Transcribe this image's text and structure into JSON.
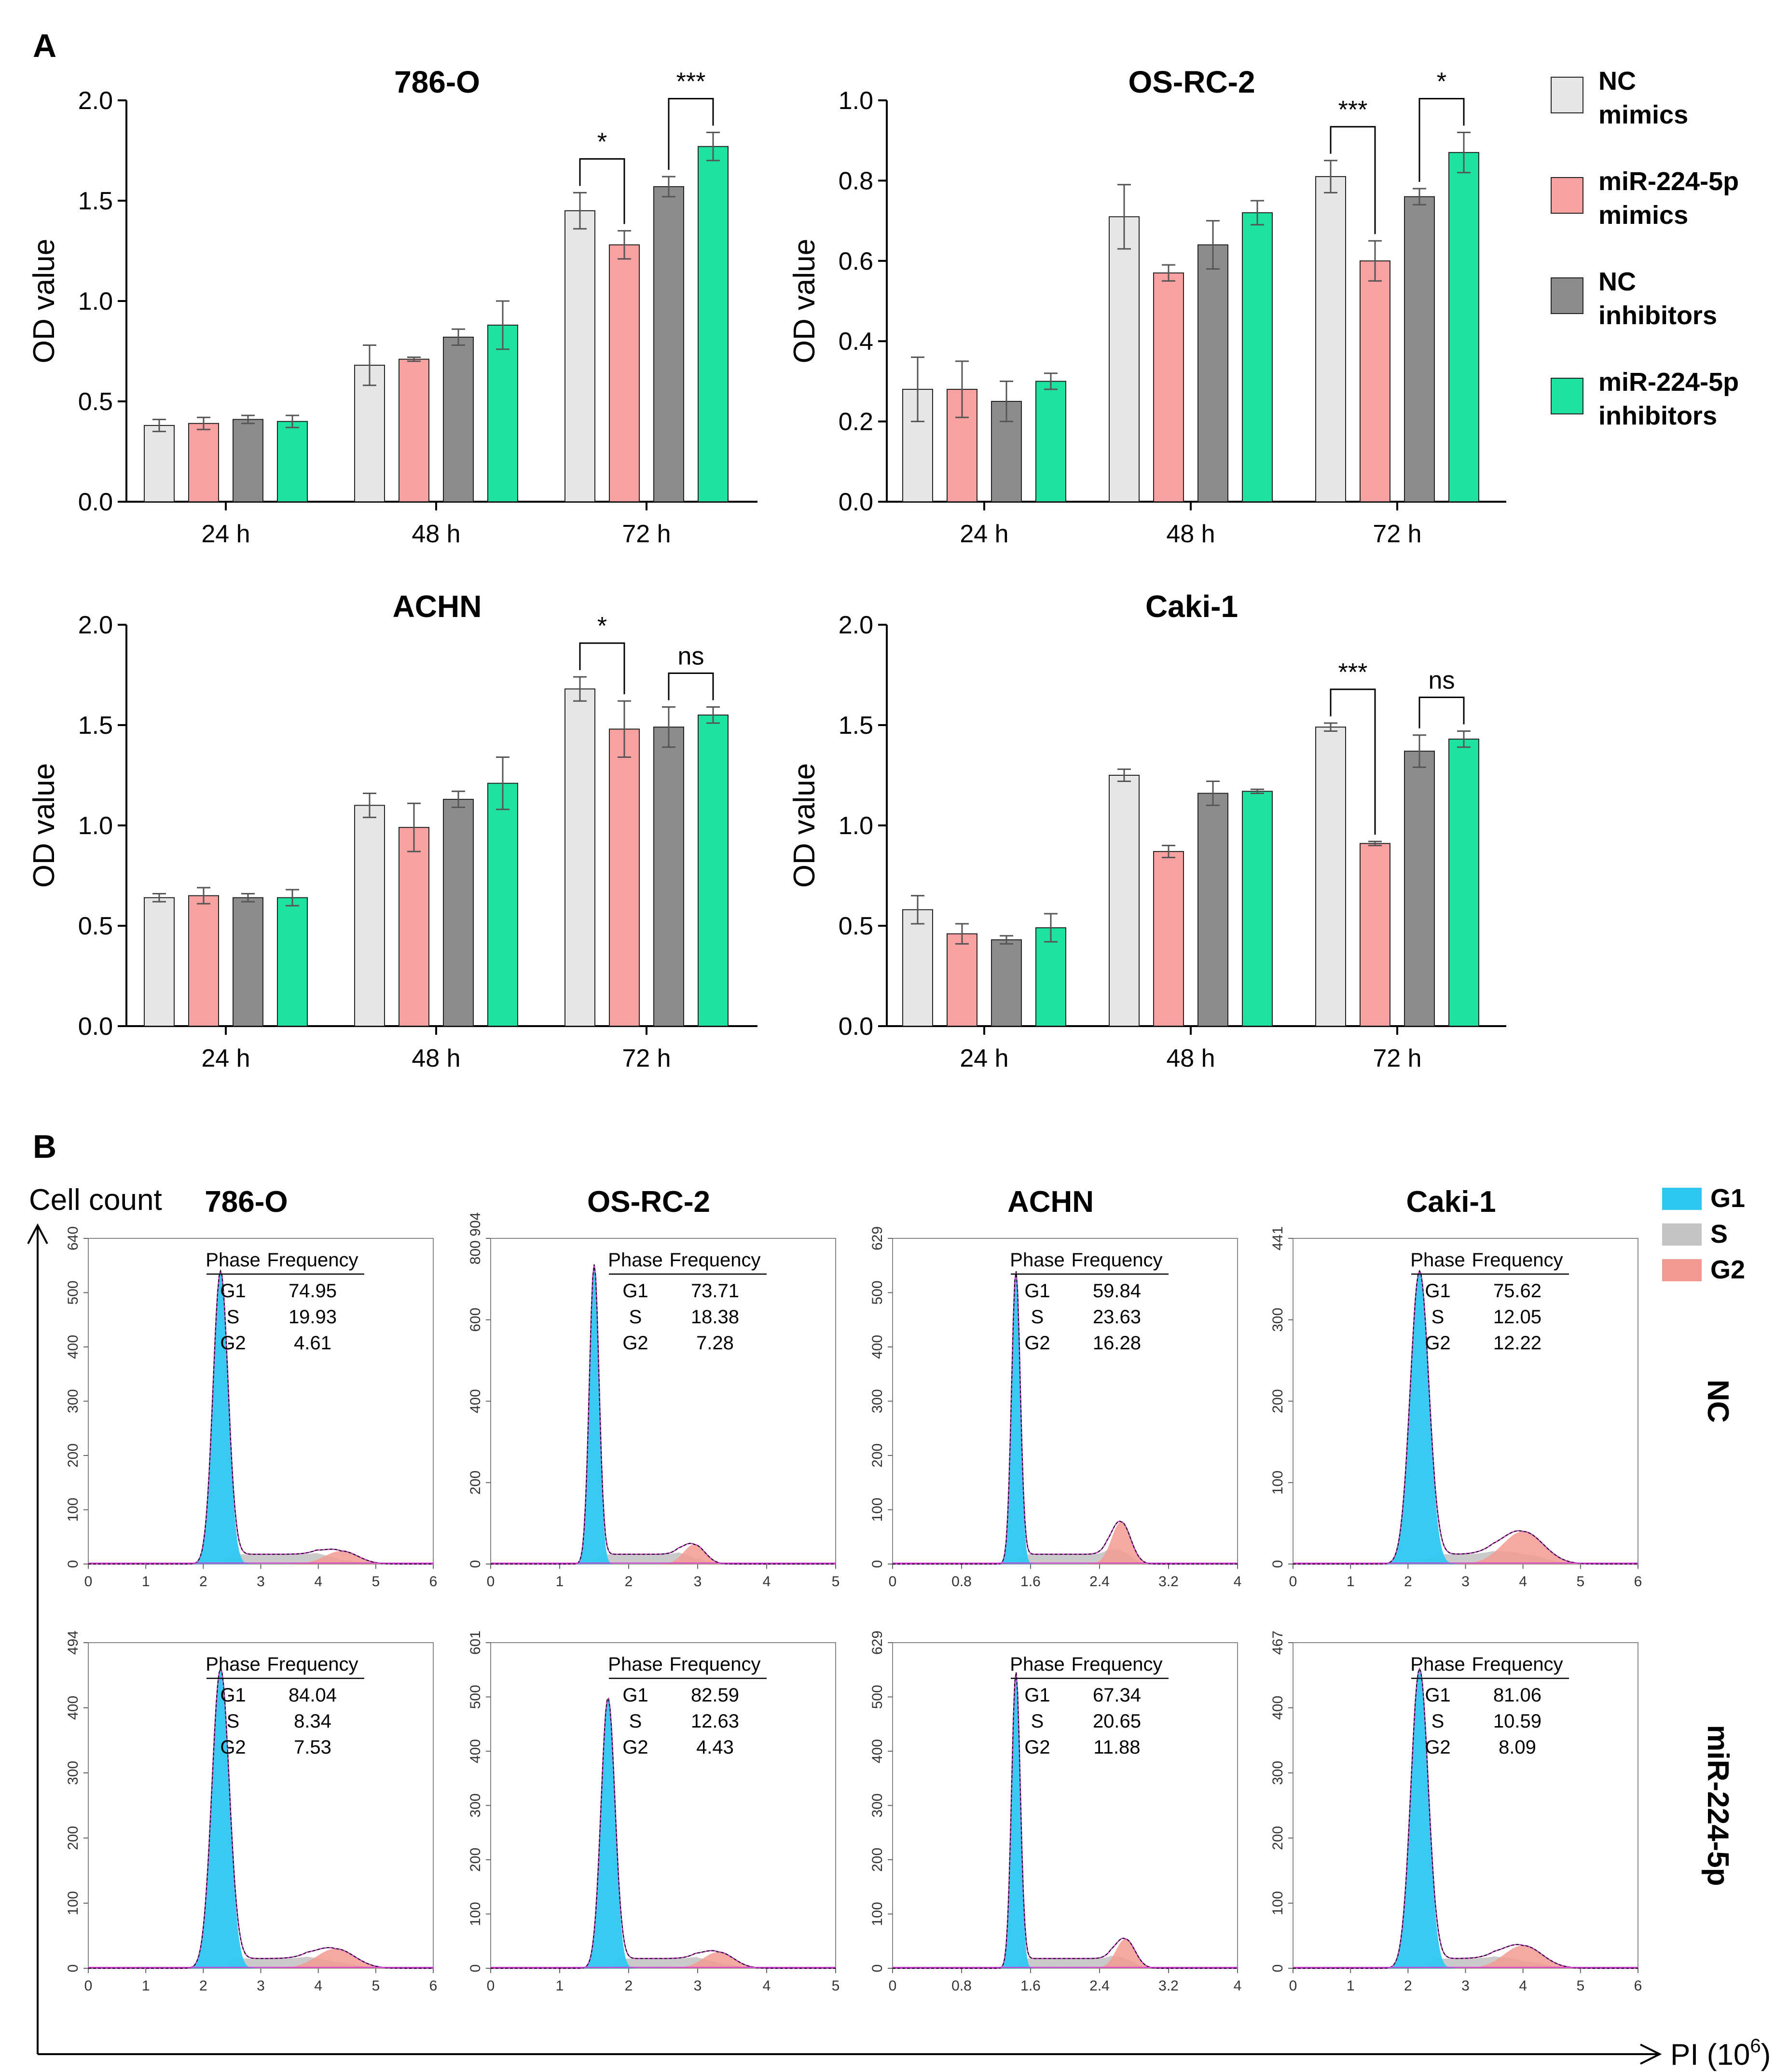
{
  "panel_a_label": "A",
  "panel_b_label": "B",
  "legend_a": [
    {
      "line1": "NC",
      "line2": "mimics",
      "color": "#e6e6e6"
    },
    {
      "line1": "miR-224-5p",
      "line2": "mimics",
      "color": "#f7a1a1"
    },
    {
      "line1": "NC",
      "line2": "inhibitors",
      "color": "#8c8c8c"
    },
    {
      "line1": "miR-224-5p",
      "line2": "inhibitors",
      "color": "#1ee3a0"
    }
  ],
  "legend_b": [
    {
      "label": "G1",
      "color": "#2ec7f0"
    },
    {
      "label": "S",
      "color": "#c4c4c4"
    },
    {
      "label": "G2",
      "color": "#f29a92"
    }
  ],
  "chart_data": [
    {
      "type": "bar",
      "title": "786-O",
      "ylabel": "OD value",
      "xlabel": "",
      "categories": [
        "24 h",
        "48 h",
        "72 h"
      ],
      "ylim": [
        0,
        2.0
      ],
      "yticks": [
        "0.0",
        "0.5",
        "1.0",
        "1.5",
        "2.0"
      ],
      "series": [
        {
          "name": "NC mimics",
          "values": [
            0.38,
            0.68,
            1.45
          ],
          "errors": [
            0.03,
            0.1,
            0.09
          ]
        },
        {
          "name": "miR-224-5p mimics",
          "values": [
            0.39,
            0.71,
            1.28
          ],
          "errors": [
            0.03,
            0.01,
            0.07
          ]
        },
        {
          "name": "NC inhibitors",
          "values": [
            0.41,
            0.82,
            1.57
          ],
          "errors": [
            0.02,
            0.04,
            0.05
          ]
        },
        {
          "name": "miR-224-5p inhibitors",
          "values": [
            0.4,
            0.88,
            1.77
          ],
          "errors": [
            0.03,
            0.12,
            0.07
          ]
        }
      ],
      "annotations": [
        {
          "text": "*",
          "group": 2,
          "from": 0,
          "to": 1
        },
        {
          "text": "***",
          "group": 2,
          "from": 2,
          "to": 3
        }
      ]
    },
    {
      "type": "bar",
      "title": "OS-RC-2",
      "ylabel": "OD value",
      "xlabel": "",
      "categories": [
        "24 h",
        "48 h",
        "72 h"
      ],
      "ylim": [
        0,
        1.0
      ],
      "yticks": [
        "0.0",
        "0.2",
        "0.4",
        "0.6",
        "0.8",
        "1.0"
      ],
      "series": [
        {
          "name": "NC mimics",
          "values": [
            0.28,
            0.71,
            0.81
          ],
          "errors": [
            0.08,
            0.08,
            0.04
          ]
        },
        {
          "name": "miR-224-5p mimics",
          "values": [
            0.28,
            0.57,
            0.6
          ],
          "errors": [
            0.07,
            0.02,
            0.05
          ]
        },
        {
          "name": "NC inhibitors",
          "values": [
            0.25,
            0.64,
            0.76
          ],
          "errors": [
            0.05,
            0.06,
            0.02
          ]
        },
        {
          "name": "miR-224-5p inhibitors",
          "values": [
            0.3,
            0.72,
            0.87
          ],
          "errors": [
            0.02,
            0.03,
            0.05
          ]
        }
      ],
      "annotations": [
        {
          "text": "***",
          "group": 2,
          "from": 0,
          "to": 1
        },
        {
          "text": "*",
          "group": 2,
          "from": 2,
          "to": 3
        }
      ]
    },
    {
      "type": "bar",
      "title": "ACHN",
      "ylabel": "OD value",
      "xlabel": "",
      "categories": [
        "24 h",
        "48 h",
        "72 h"
      ],
      "ylim": [
        0,
        2.0
      ],
      "yticks": [
        "0.0",
        "0.5",
        "1.0",
        "1.5",
        "2.0"
      ],
      "series": [
        {
          "name": "NC mimics",
          "values": [
            0.64,
            1.1,
            1.68
          ],
          "errors": [
            0.02,
            0.06,
            0.06
          ]
        },
        {
          "name": "miR-224-5p mimics",
          "values": [
            0.65,
            0.99,
            1.48
          ],
          "errors": [
            0.04,
            0.12,
            0.14
          ]
        },
        {
          "name": "NC inhibitors",
          "values": [
            0.64,
            1.13,
            1.49
          ],
          "errors": [
            0.02,
            0.04,
            0.1
          ]
        },
        {
          "name": "miR-224-5p inhibitors",
          "values": [
            0.64,
            1.21,
            1.55
          ],
          "errors": [
            0.04,
            0.13,
            0.04
          ]
        }
      ],
      "annotations": [
        {
          "text": "*",
          "group": 2,
          "from": 0,
          "to": 1
        },
        {
          "text": "ns",
          "group": 2,
          "from": 2,
          "to": 3
        }
      ]
    },
    {
      "type": "bar",
      "title": "Caki-1",
      "ylabel": "OD value",
      "xlabel": "",
      "categories": [
        "24 h",
        "48 h",
        "72 h"
      ],
      "ylim": [
        0,
        2.0
      ],
      "yticks": [
        "0.0",
        "0.5",
        "1.0",
        "1.5",
        "2.0"
      ],
      "series": [
        {
          "name": "NC mimics",
          "values": [
            0.58,
            1.25,
            1.49
          ],
          "errors": [
            0.07,
            0.03,
            0.02
          ]
        },
        {
          "name": "miR-224-5p mimics",
          "values": [
            0.46,
            0.87,
            0.91
          ],
          "errors": [
            0.05,
            0.03,
            0.01
          ]
        },
        {
          "name": "NC inhibitors",
          "values": [
            0.43,
            1.16,
            1.37
          ],
          "errors": [
            0.02,
            0.06,
            0.08
          ]
        },
        {
          "name": "miR-224-5p inhibitors",
          "values": [
            0.49,
            1.17,
            1.43
          ],
          "errors": [
            0.07,
            0.01,
            0.04
          ]
        }
      ],
      "annotations": [
        {
          "text": "***",
          "group": 2,
          "from": 0,
          "to": 1
        },
        {
          "text": "ns",
          "group": 2,
          "from": 2,
          "to": 3
        }
      ]
    }
  ],
  "flow": {
    "y_axis_label": "Cell count",
    "x_axis_label": "PI (10",
    "x_axis_superscript": "6",
    "x_axis_close": ")",
    "column_titles": [
      "786-O",
      "OS-RC-2",
      "ACHN",
      "Caki-1"
    ],
    "row_labels": [
      "NC",
      "miR-224-5p"
    ],
    "table_headers": [
      "Phase",
      "Frequency"
    ],
    "phases": [
      "G1",
      "S",
      "G2"
    ],
    "panels": [
      {
        "column": 0,
        "row": 0,
        "xmax": 6,
        "xticks": [
          "0",
          "1",
          "2",
          "3",
          "4",
          "5",
          "6"
        ],
        "ymax": 640,
        "yticks": [
          "0",
          "100",
          "200",
          "300",
          "400",
          "500",
          "640"
        ],
        "frequencies": [
          "74.95",
          "19.93",
          "4.61"
        ],
        "g1_peak": 2.3,
        "g2_peak": 4.4,
        "g1_height": 0.9,
        "g2_height": 0.04,
        "g1_sigma": 0.13
      },
      {
        "column": 1,
        "row": 0,
        "xmax": 5,
        "xticks": [
          "0",
          "1",
          "2",
          "3",
          "4",
          "5"
        ],
        "ymax": 904,
        "yticks": [
          "0",
          "200",
          "400",
          "600",
          "800 904"
        ],
        "frequencies": [
          "73.71",
          "18.38",
          "7.28"
        ],
        "g1_peak": 1.5,
        "g2_peak": 2.95,
        "g1_height": 0.92,
        "g2_height": 0.06,
        "g1_sigma": 0.07
      },
      {
        "column": 2,
        "row": 0,
        "xmax": 4,
        "xticks": [
          "0",
          "0.8",
          "1.6",
          "2.4",
          "3.2",
          "4"
        ],
        "ymax": 629,
        "yticks": [
          "0",
          "100",
          "200",
          "300",
          "400",
          "500",
          "629"
        ],
        "frequencies": [
          "59.84",
          "23.63",
          "16.28"
        ],
        "g1_peak": 1.43,
        "g2_peak": 2.65,
        "g1_height": 0.9,
        "g2_height": 0.13,
        "g1_sigma": 0.05
      },
      {
        "column": 3,
        "row": 0,
        "xmax": 6,
        "xticks": [
          "0",
          "1",
          "2",
          "3",
          "4",
          "5",
          "6"
        ],
        "ymax": 441,
        "yticks": [
          "0",
          "100",
          "200",
          "300",
          "441"
        ],
        "frequencies": [
          "75.62",
          "12.05",
          "12.22"
        ],
        "g1_peak": 2.2,
        "g2_peak": 4.0,
        "g1_height": 0.9,
        "g2_height": 0.1,
        "g1_sigma": 0.16
      },
      {
        "column": 0,
        "row": 1,
        "xmax": 6,
        "xticks": [
          "0",
          "1",
          "2",
          "3",
          "4",
          "5",
          "6"
        ],
        "ymax": 494,
        "yticks": [
          "0",
          "100",
          "200",
          "300",
          "400",
          "494"
        ],
        "frequencies": [
          "84.04",
          "8.34",
          "7.53"
        ],
        "g1_peak": 2.3,
        "g2_peak": 4.3,
        "g1_height": 0.92,
        "g2_height": 0.06,
        "g1_sigma": 0.15
      },
      {
        "column": 1,
        "row": 1,
        "xmax": 5,
        "xticks": [
          "0",
          "1",
          "2",
          "3",
          "4",
          "5"
        ],
        "ymax": 601,
        "yticks": [
          "0",
          "100",
          "200",
          "300",
          "400",
          "500",
          "601"
        ],
        "frequencies": [
          "82.59",
          "12.63",
          "4.43"
        ],
        "g1_peak": 1.7,
        "g2_peak": 3.3,
        "g1_height": 0.83,
        "g2_height": 0.05,
        "g1_sigma": 0.1
      },
      {
        "column": 2,
        "row": 1,
        "xmax": 4,
        "xticks": [
          "0",
          "0.8",
          "1.6",
          "2.4",
          "3.2",
          "4"
        ],
        "ymax": 629,
        "yticks": [
          "0",
          "100",
          "200",
          "300",
          "400",
          "500",
          "629"
        ],
        "frequencies": [
          "67.34",
          "20.65",
          "11.88"
        ],
        "g1_peak": 1.43,
        "g2_peak": 2.7,
        "g1_height": 0.91,
        "g2_height": 0.09,
        "g1_sigma": 0.05
      },
      {
        "column": 3,
        "row": 1,
        "xmax": 6,
        "xticks": [
          "0",
          "1",
          "2",
          "3",
          "4",
          "5",
          "6"
        ],
        "ymax": 467,
        "yticks": [
          "0",
          "100",
          "200",
          "300",
          "400",
          "467"
        ],
        "frequencies": [
          "81.06",
          "10.59",
          "8.09"
        ],
        "g1_peak": 2.2,
        "g2_peak": 4.0,
        "g1_height": 0.92,
        "g2_height": 0.07,
        "g1_sigma": 0.15
      }
    ]
  }
}
